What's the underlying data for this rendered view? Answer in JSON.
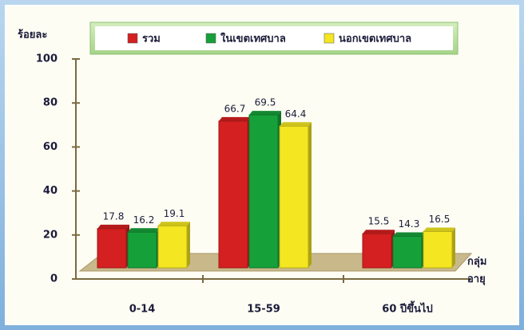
{
  "chart_data": {
    "type": "bar",
    "y_label": "ร้อยละ",
    "x_label": "กลุ่ม อายุ",
    "categories": [
      "0-14",
      "15-59",
      "60 ปีขึ้นไป"
    ],
    "series": [
      {
        "name": "รวม",
        "color": "#d42020",
        "values": [
          17.8,
          66.7,
          15.5
        ]
      },
      {
        "name": "ในเขตเทศบาล",
        "color": "#16a03a",
        "values": [
          16.2,
          69.5,
          14.3
        ]
      },
      {
        "name": "นอกเขตเทศบาล",
        "color": "#f4e620",
        "values": [
          19.1,
          64.4,
          16.5
        ]
      }
    ],
    "ylim": [
      0,
      100
    ],
    "yticks": [
      0,
      20,
      40,
      60,
      80,
      100
    ]
  }
}
